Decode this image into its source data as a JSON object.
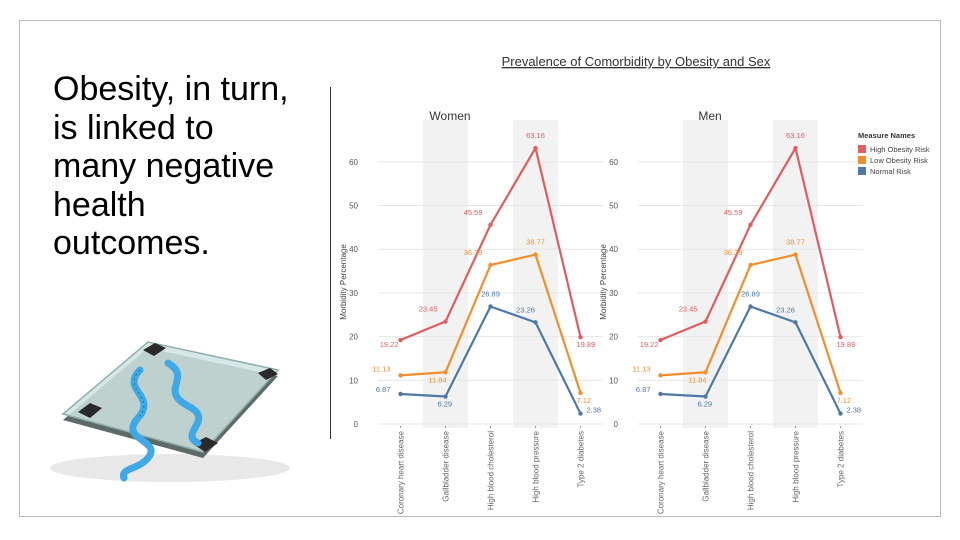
{
  "slide": {
    "text_lines": [
      "Obesity, in turn,",
      "is linked to",
      "many negative",
      "health",
      "outcomes."
    ]
  },
  "image": {
    "icon": "bathroom-scale-with-tape-measure",
    "colors": {
      "tape": "#3fa9e6",
      "glass": "#cfe3e2",
      "bg": "#ffffff"
    }
  },
  "chart_data": {
    "type": "line",
    "title": "Prevalence of Comorbidity by Obesity and Sex",
    "ylabel": "Morbidity Percentage",
    "ylim": [
      0,
      65
    ],
    "yticks": [
      0,
      10,
      20,
      30,
      40,
      50,
      60
    ],
    "categories": [
      "Coronary heart disease",
      "Gallbladder disease",
      "High blood cholesterol",
      "High blood pressure",
      "Type 2 diabetes"
    ],
    "legend": {
      "title": "Measure Names",
      "position": "top-right",
      "entries": [
        "High Obesity Risk",
        "Low Obesity Risk",
        "Normal Risk"
      ]
    },
    "colors": {
      "High Obesity Risk": "#e05c5d",
      "Low Obesity Risk": "#f28e2b",
      "Normal Risk": "#4e79a7"
    },
    "panels": [
      {
        "name": "Women",
        "series": [
          {
            "name": "High Obesity Risk",
            "values": [
              19.22,
              23.45,
              45.59,
              63.16,
              19.89
            ]
          },
          {
            "name": "Low Obesity Risk",
            "values": [
              11.13,
              11.84,
              36.39,
              38.77,
              7.12
            ]
          },
          {
            "name": "Normal Risk",
            "values": [
              6.87,
              6.29,
              26.89,
              23.26,
              2.38
            ]
          }
        ]
      },
      {
        "name": "Men",
        "series": [
          {
            "name": "High Obesity Risk",
            "values": [
              19.22,
              23.45,
              45.59,
              63.16,
              19.89
            ]
          },
          {
            "name": "Low Obesity Risk",
            "values": [
              11.13,
              11.84,
              36.39,
              38.77,
              7.12
            ]
          },
          {
            "name": "Normal Risk",
            "values": [
              6.87,
              6.29,
              26.89,
              23.26,
              2.38
            ]
          }
        ]
      }
    ]
  }
}
